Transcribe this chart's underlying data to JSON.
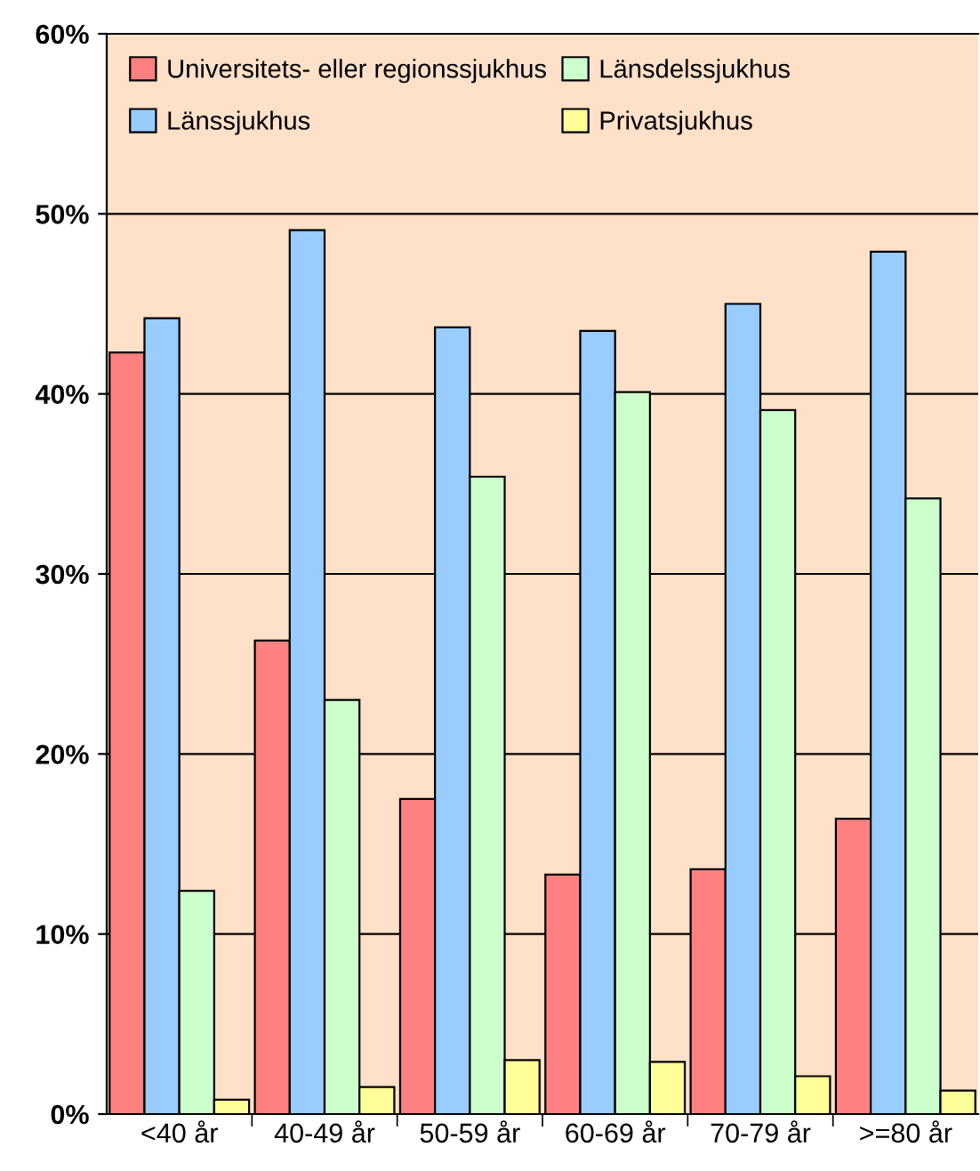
{
  "chart_data": {
    "type": "bar",
    "categories": [
      "<40 år",
      "40-49 år",
      "50-59 år",
      "60-69 år",
      "70-79 år",
      ">=80 år"
    ],
    "series": [
      {
        "name": "Universitets- eller regionssjukhus",
        "color": "#ff8080",
        "values": [
          42.3,
          26.3,
          17.5,
          13.3,
          13.6,
          16.4
        ]
      },
      {
        "name": "Länssjukhus",
        "color": "#99ccff",
        "values": [
          44.2,
          49.1,
          43.7,
          43.5,
          45.0,
          47.9
        ]
      },
      {
        "name": "Länsdelssjukhus",
        "color": "#ccffcc",
        "values": [
          12.4,
          23.0,
          35.4,
          40.1,
          39.1,
          34.2
        ]
      },
      {
        "name": "Privatsjukhus",
        "color": "#ffff99",
        "values": [
          0.8,
          1.5,
          3.0,
          2.9,
          2.1,
          1.3
        ]
      }
    ],
    "ylim": [
      0,
      60
    ],
    "yticks": [
      {
        "value": 0,
        "label": "0%"
      },
      {
        "value": 10,
        "label": "10%"
      },
      {
        "value": 20,
        "label": "20%"
      },
      {
        "value": 30,
        "label": "30%"
      },
      {
        "value": 40,
        "label": "40%"
      },
      {
        "value": 50,
        "label": "50%"
      },
      {
        "value": 60,
        "label": "60%"
      }
    ],
    "grid": "y",
    "legend": "top left"
  }
}
